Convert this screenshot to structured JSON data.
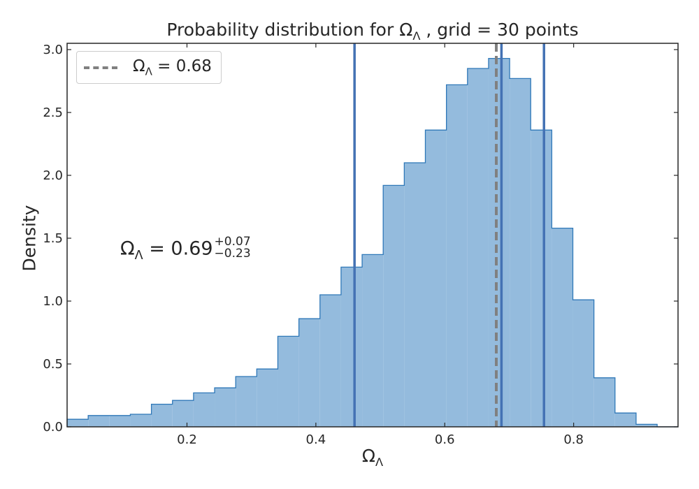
{
  "chart_data": {
    "type": "histogram",
    "title": "Probability distribution for Ω",
    "title_sub": "Λ",
    "title_suffix": " , grid = 30 points",
    "xlabel": "Ω",
    "xlabel_sub": "Λ",
    "ylabel": "Density",
    "xlim": [
      0.014,
      0.962
    ],
    "ylim": [
      0.0,
      3.05
    ],
    "x_ticks": [
      0.2,
      0.4,
      0.6,
      0.8
    ],
    "x_tick_labels": [
      "0.2",
      "0.4",
      "0.6",
      "0.8"
    ],
    "y_ticks": [
      0.0,
      0.5,
      1.0,
      1.5,
      2.0,
      2.5,
      3.0
    ],
    "y_tick_labels": [
      "0.0",
      "0.5",
      "1.0",
      "1.5",
      "2.0",
      "2.5",
      "3.0"
    ],
    "bin_start": 0.014,
    "bin_width": 0.0327,
    "values": [
      0.06,
      0.09,
      0.09,
      0.1,
      0.18,
      0.21,
      0.27,
      0.31,
      0.4,
      0.46,
      0.72,
      0.86,
      1.05,
      1.27,
      1.37,
      1.92,
      2.1,
      2.36,
      2.72,
      2.85,
      2.93,
      2.77,
      2.36,
      1.58,
      1.01,
      0.39,
      0.11,
      0.02,
      0.0
    ],
    "vertical_lines": [
      {
        "x": 0.46,
        "style": "solid",
        "color": "#4472b4"
      },
      {
        "x": 0.688,
        "style": "solid",
        "color": "#4472b4"
      },
      {
        "x": 0.754,
        "style": "solid",
        "color": "#4472b4"
      },
      {
        "x": 0.68,
        "style": "dashed",
        "color": "#808080"
      }
    ],
    "legend": {
      "placement": "top-left",
      "label": "Ω",
      "label_sub": "Λ",
      "label_suffix": " = 0.68"
    },
    "annotation": {
      "text": "Ω",
      "sub": "Λ",
      "value": " = 0.69",
      "plus": "+0.07",
      "minus": "−0.23"
    },
    "colors": {
      "fill": "#94bbdd",
      "edge": "#2f78b8",
      "median_line": "#4472b4",
      "dashed_line": "#808080",
      "text": "#262626"
    }
  }
}
